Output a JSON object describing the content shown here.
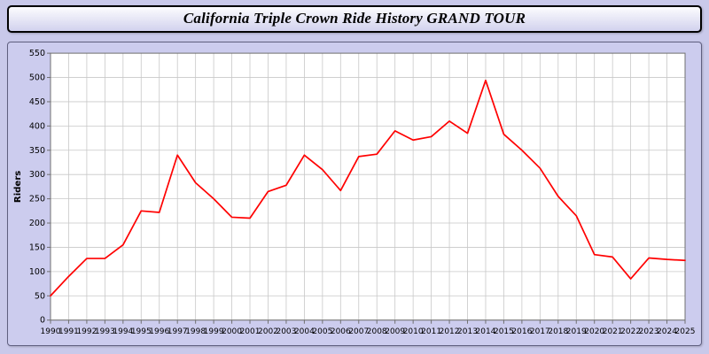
{
  "header": {
    "title": "California Triple Crown Ride History GRAND TOUR"
  },
  "colors": {
    "page_background": "#c9c9ea",
    "panel_background": "#ccccee",
    "plot_background": "#ffffff",
    "grid_color": "#c8c8c8",
    "axis_color": "#707070",
    "line_color": "#ff0000",
    "text_color": "#000000"
  },
  "chart_data": {
    "type": "line",
    "title": "California Triple Crown Ride History GRAND TOUR",
    "xlabel": "",
    "ylabel": "Riders",
    "ylim": [
      0,
      550
    ],
    "ytick_step": 50,
    "grid": true,
    "legend_position": "none",
    "x": [
      1990,
      1991,
      1992,
      1993,
      1994,
      1995,
      1996,
      1997,
      1998,
      1999,
      2000,
      2001,
      2002,
      2003,
      2004,
      2005,
      2006,
      2007,
      2008,
      2009,
      2010,
      2011,
      2012,
      2013,
      2014,
      2015,
      2016,
      2017,
      2018,
      2019,
      2020,
      2021,
      2022,
      2023,
      2024,
      2025
    ],
    "series": [
      {
        "name": "Riders",
        "values": [
          50,
          90,
          127,
          127,
          155,
          225,
          222,
          340,
          283,
          250,
          212,
          210,
          265,
          278,
          340,
          310,
          267,
          337,
          342,
          390,
          371,
          378,
          410,
          385,
          494,
          383,
          350,
          313,
          255,
          215,
          135,
          130,
          85,
          128,
          125,
          123
        ]
      }
    ]
  }
}
